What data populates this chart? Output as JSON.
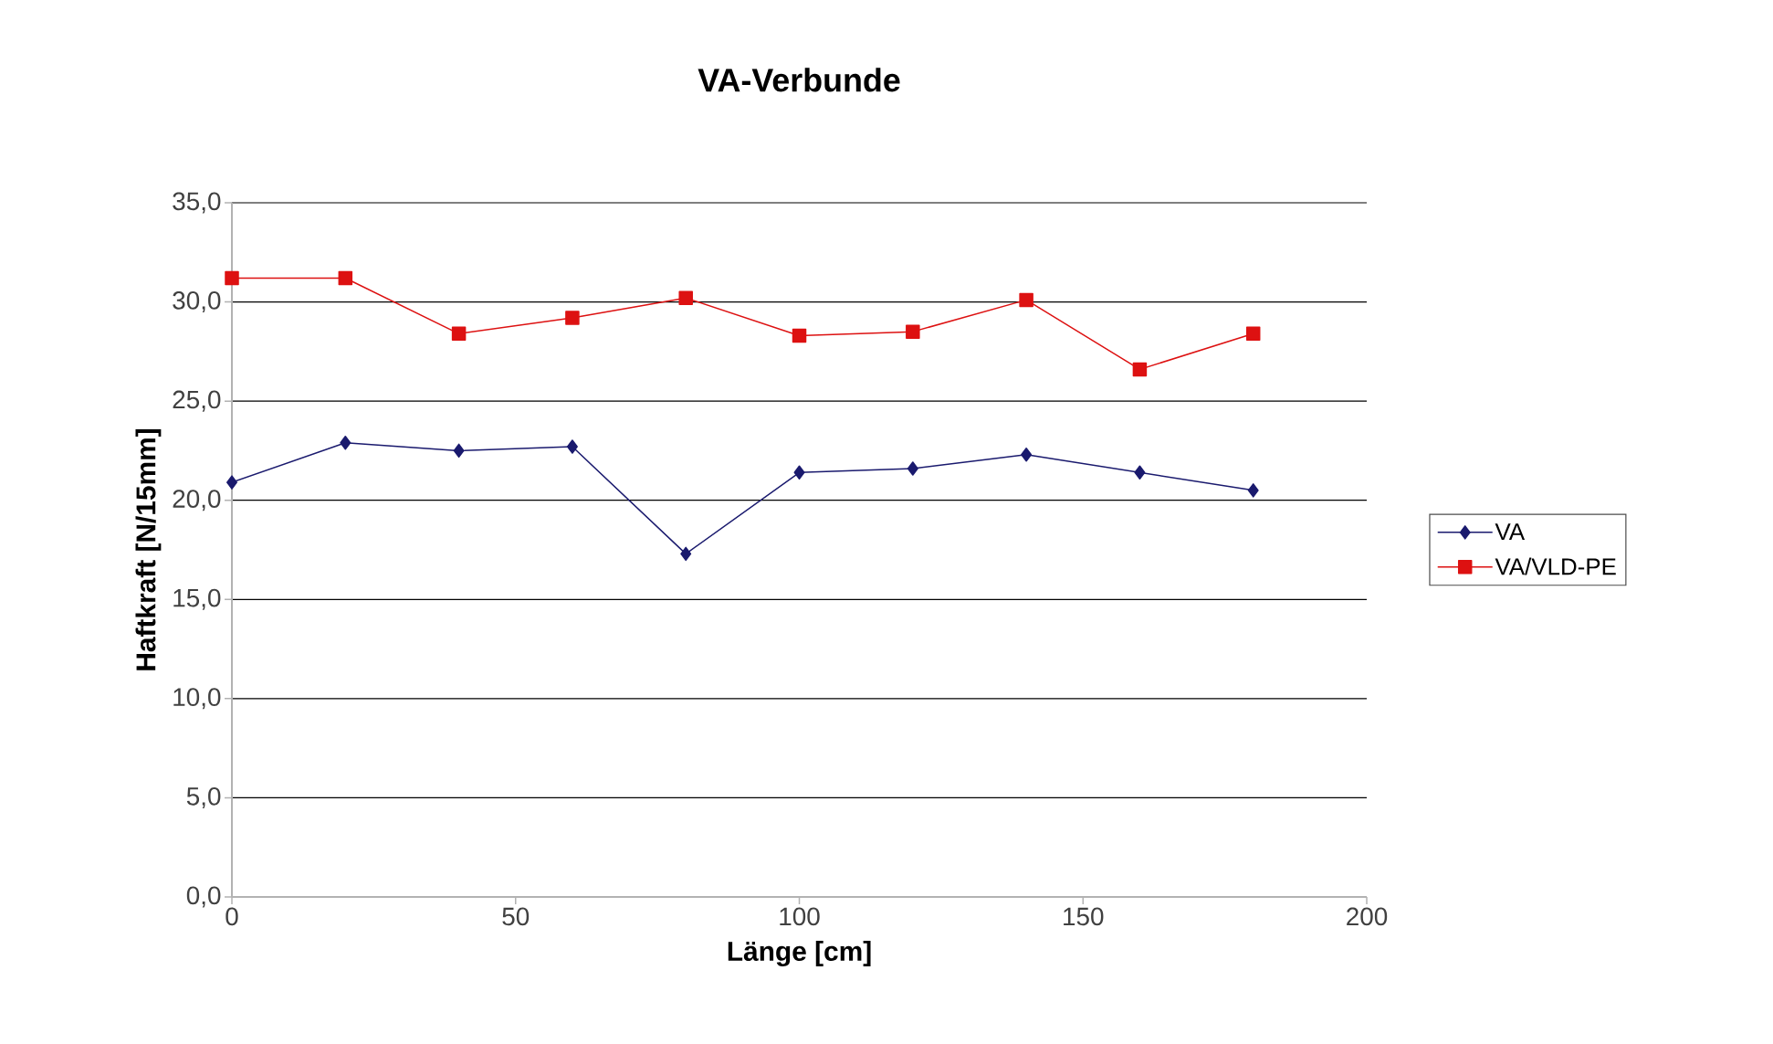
{
  "chart_data": {
    "type": "line",
    "title": "VA-Verbunde",
    "xlabel": "Länge [cm]",
    "ylabel": "Haftkraft [N/15mm]",
    "x": [
      0,
      20,
      40,
      60,
      80,
      100,
      120,
      140,
      160,
      180
    ],
    "series": [
      {
        "name": "VA",
        "color": "#1a1a6e",
        "marker": "diamond",
        "values": [
          20.9,
          22.9,
          22.5,
          22.7,
          17.3,
          21.4,
          21.6,
          22.3,
          21.4,
          20.5
        ]
      },
      {
        "name": "VA/VLD-PE",
        "color": "#dd1111",
        "marker": "square",
        "values": [
          31.2,
          31.2,
          28.4,
          29.2,
          30.2,
          28.3,
          28.5,
          30.1,
          26.6,
          28.4
        ]
      }
    ],
    "xlim": [
      0,
      200
    ],
    "xticks": [
      0,
      50,
      100,
      150,
      200
    ],
    "ylim": [
      0,
      35
    ],
    "yticks": [
      {
        "value": 0,
        "label": "0,0"
      },
      {
        "value": 5,
        "label": "5,0"
      },
      {
        "value": 10,
        "label": "10,0"
      },
      {
        "value": 15,
        "label": "15,0"
      },
      {
        "value": 20,
        "label": "20,0"
      },
      {
        "value": 25,
        "label": "25,0"
      },
      {
        "value": 30,
        "label": "30,0"
      },
      {
        "value": 35,
        "label": "35,0"
      }
    ],
    "grid": "y",
    "legend": "right",
    "line_style": "solid"
  }
}
